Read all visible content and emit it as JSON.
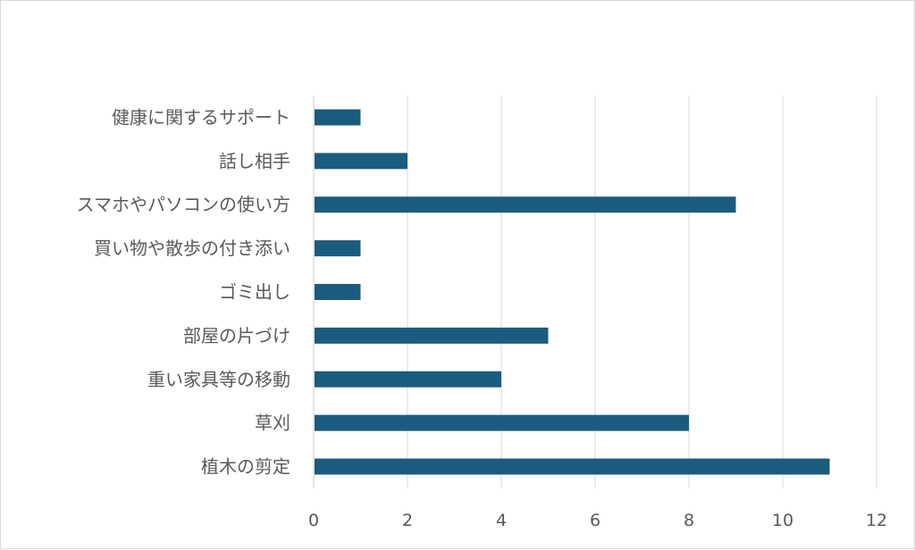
{
  "chart_data": {
    "type": "bar",
    "orientation": "horizontal",
    "categories": [
      "健康に関するサポート",
      "話し相手",
      "スマホやパソコンの使い方",
      "買い物や散歩の付き添い",
      "ゴミ出し",
      "部屋の片づけ",
      "重い家具等の移動",
      "草刈",
      "植木の剪定"
    ],
    "values": [
      1,
      2,
      9,
      1,
      1,
      5,
      4,
      8,
      11
    ],
    "x_ticks": [
      "0",
      "2",
      "4",
      "6",
      "8",
      "10",
      "12"
    ],
    "xlim": [
      0,
      12
    ],
    "grid": "vertical",
    "bar_color": "#1b5b7e",
    "grid_color": "#d9d9d9",
    "title": "",
    "xlabel": "",
    "ylabel": ""
  }
}
